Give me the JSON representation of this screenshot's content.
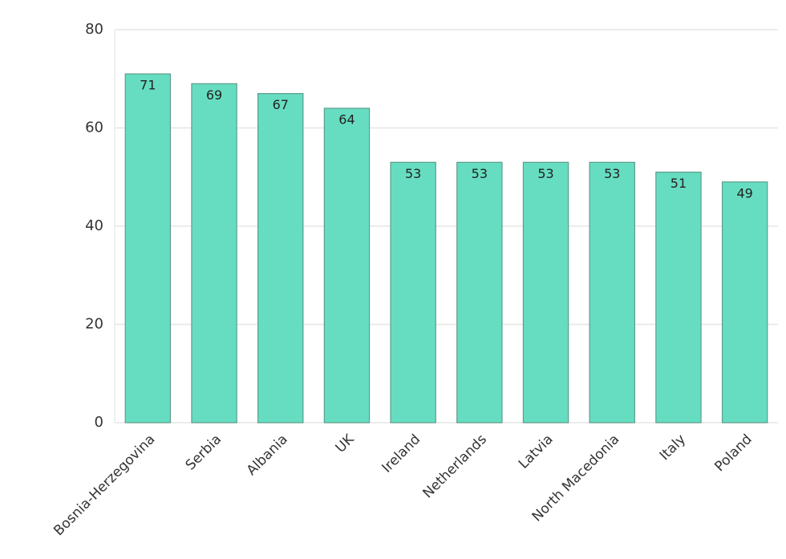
{
  "chart_data": {
    "type": "bar",
    "categories": [
      "Bosnia-Herzegovina",
      "Serbia",
      "Albania",
      "UK",
      "Ireland",
      "Netherlands",
      "Latvia",
      "North Macedonia",
      "Italy",
      "Poland"
    ],
    "values": [
      71,
      69,
      67,
      64,
      53,
      53,
      53,
      53,
      51,
      49
    ],
    "color": "#66ddc0",
    "ylim": [
      0,
      80
    ],
    "yticks": [
      0,
      20,
      40,
      60,
      80
    ],
    "grid": true
  }
}
